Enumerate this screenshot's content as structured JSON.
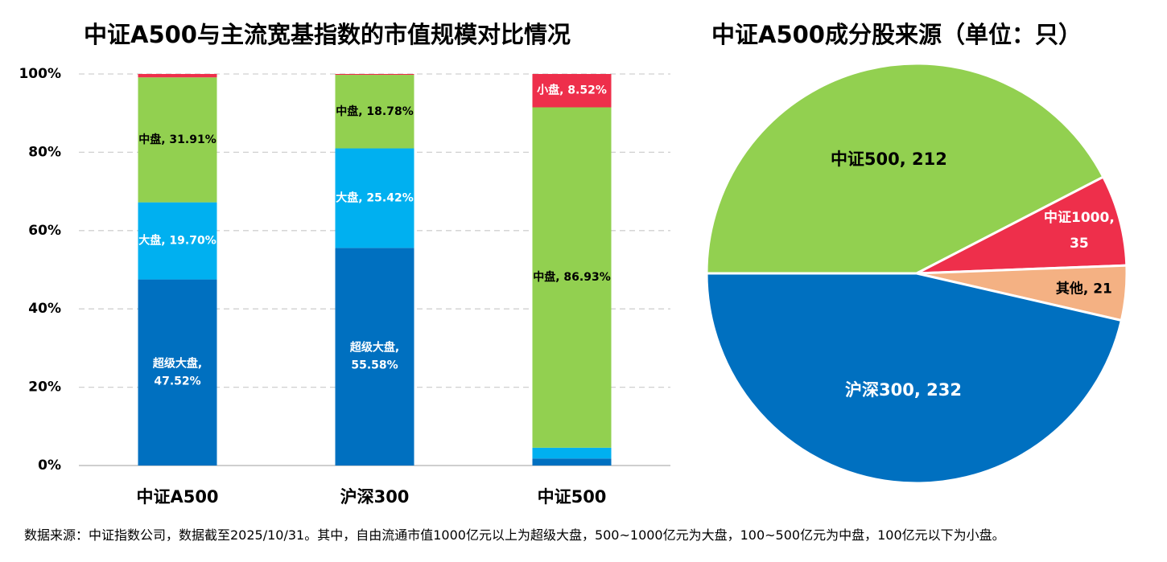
{
  "colors": {
    "super_large": "#0070C0",
    "large": "#00B0F0",
    "mid": "#92D050",
    "small": "#EE2F4B",
    "other": "#F4B183",
    "grid": "#D0D0D0"
  },
  "source_note": "数据来源：中证指数公司，数据截至2025/10/31。其中，自由流通市值1000亿元以上为超级大盘，500~1000亿元为大盘，100~500亿元为中盘，100亿元以下为小盘。",
  "chart_data": [
    {
      "type": "bar",
      "stacked": true,
      "title": "中证A500与主流宽基指数的市值规模对比情况",
      "categories": [
        "中证A500",
        "沪深300",
        "中证500"
      ],
      "ylim": [
        0,
        100
      ],
      "yticks": [
        "0%",
        "20%",
        "40%",
        "60%",
        "80%",
        "100%"
      ],
      "ytick_values": [
        0,
        20,
        40,
        60,
        80,
        100
      ],
      "grid": true,
      "series": [
        {
          "name": "超级大盘",
          "color_key": "super_large",
          "values": [
            47.52,
            55.58,
            1.8
          ],
          "labels": [
            [
              "超级大盘,",
              "47.52%"
            ],
            [
              "超级大盘,",
              "55.58%"
            ],
            null
          ],
          "label_color": "#ffffff"
        },
        {
          "name": "大盘",
          "color_key": "large",
          "values": [
            19.7,
            25.42,
            2.75
          ],
          "labels": [
            [
              "大盘, 19.70%"
            ],
            [
              "大盘, 25.42%"
            ],
            null
          ],
          "label_color": "#ffffff"
        },
        {
          "name": "中盘",
          "color_key": "mid",
          "values": [
            31.91,
            18.78,
            86.93
          ],
          "labels": [
            [
              "中盘, 31.91%"
            ],
            [
              "中盘, 18.78%"
            ],
            [
              "中盘, 86.93%"
            ]
          ],
          "label_color": "#000000"
        },
        {
          "name": "小盘",
          "color_key": "small",
          "values": [
            0.87,
            0.22,
            8.52
          ],
          "labels": [
            null,
            null,
            [
              "小盘, 8.52%"
            ]
          ],
          "label_color": "#ffffff"
        }
      ]
    },
    {
      "type": "pie",
      "title": "中证A500成分股来源（单位：只）",
      "slices": [
        {
          "name": "中证500",
          "value": 212,
          "label": [
            "中证500, 212"
          ],
          "color_key": "mid",
          "label_color": "#000000"
        },
        {
          "name": "中证1000",
          "value": 35,
          "label": [
            "中证1000,",
            "35"
          ],
          "color_key": "small",
          "label_color": "#ffffff"
        },
        {
          "name": "其他",
          "value": 21,
          "label": [
            "其他, 21"
          ],
          "color_key": "other",
          "label_color": "#000000"
        },
        {
          "name": "沪深300",
          "value": 232,
          "label": [
            "沪深300, 232"
          ],
          "color_key": "super_large",
          "label_color": "#ffffff"
        }
      ]
    }
  ]
}
